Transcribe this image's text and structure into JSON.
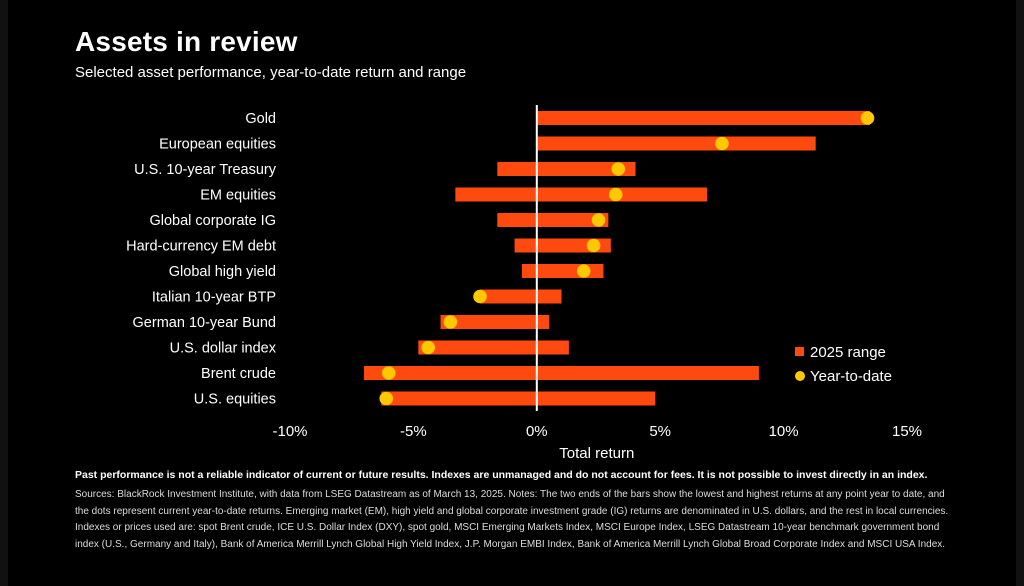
{
  "header": {
    "title": "Assets in review",
    "subtitle": "Selected asset performance, year-to-date return and range"
  },
  "chart_data": {
    "type": "bar",
    "categories": [
      "Gold",
      "European equities",
      "U.S. 10-year Treasury",
      "EM equities",
      "Global corporate IG",
      "Hard-currency EM debt",
      "Global high yield",
      "Italian 10-year BTP",
      "German 10-year Bund",
      "U.S. dollar index",
      "Brent crude",
      "U.S. equities"
    ],
    "series": [
      {
        "name": "2025 range",
        "type": "range",
        "low": [
          0,
          0,
          -1.6,
          -3.3,
          -1.6,
          -0.9,
          -0.6,
          -2.3,
          -3.9,
          -4.8,
          -7.0,
          -6.3
        ],
        "high": [
          13.5,
          11.3,
          4.0,
          6.9,
          2.9,
          3.0,
          2.7,
          1.0,
          0.5,
          1.3,
          9.0,
          4.8
        ]
      },
      {
        "name": "Year-to-date",
        "type": "dot",
        "values": [
          13.4,
          7.5,
          3.3,
          3.2,
          2.5,
          2.3,
          1.9,
          -2.3,
          -3.5,
          -4.4,
          -6.0,
          -6.1
        ]
      }
    ],
    "xlabel": "Total return",
    "xlim": [
      -10,
      15
    ],
    "xticks": [
      -10,
      -5,
      0,
      5,
      10,
      15
    ],
    "xtick_labels": [
      "-10%",
      "-5%",
      "0%",
      "5%",
      "10%",
      "15%"
    ],
    "grid": false,
    "legend": "bottom-right",
    "colors": {
      "range": "#ff4a0f",
      "dot": "#ffc800",
      "zero_line": "#ffffff"
    }
  },
  "footer": {
    "disclaimer": "Past performance is not a reliable indicator of current or future results. Indexes are unmanaged and do not account for fees. It is not possible to invest directly in an index.",
    "notes": "Sources: BlackRock Investment Institute, with data from LSEG Datastream as of March 13, 2025. Notes: The two ends of the bars show the lowest and highest returns at any point year to date, and the dots represent current year-to-date returns. Emerging market (EM), high yield and global corporate investment grade (IG) returns are denominated in U.S. dollars, and the rest in local currencies. Indexes or prices used are: spot Brent crude, ICE U.S. Dollar Index (DXY), spot gold, MSCI Emerging Markets Index, MSCI Europe Index, LSEG Datastream 10-year benchmark government bond index (U.S., Germany and Italy), Bank of America Merrill Lynch Global High Yield Index, J.P. Morgan EMBI Index, Bank of America Merrill Lynch Global Broad Corporate Index and MSCI USA Index."
  }
}
